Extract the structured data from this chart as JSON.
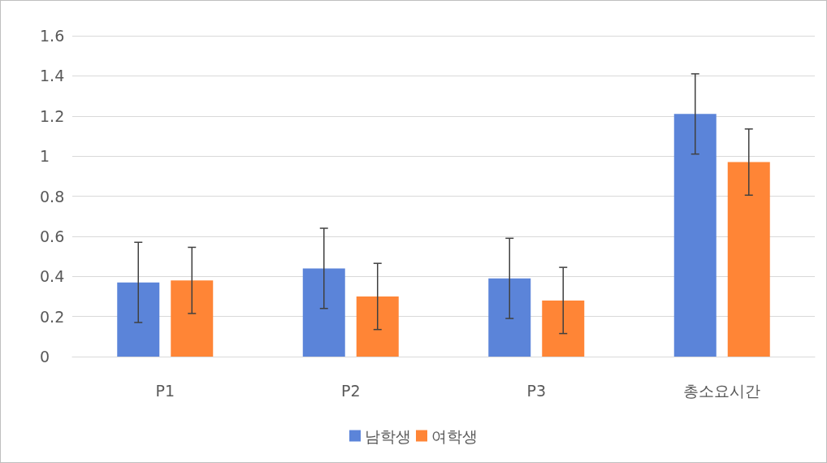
{
  "chart_data": {
    "type": "bar",
    "categories": [
      "P1",
      "P2",
      "P3",
      "총소요시간"
    ],
    "series": [
      {
        "name": "남학생",
        "color": "#5b84d9",
        "values": [
          0.37,
          0.44,
          0.39,
          1.21
        ],
        "errors": [
          0.2,
          0.2,
          0.2,
          0.2
        ]
      },
      {
        "name": "여학생",
        "color": "#ff8536",
        "values": [
          0.38,
          0.3,
          0.28,
          0.97
        ],
        "errors": [
          0.165,
          0.165,
          0.165,
          0.165
        ]
      }
    ],
    "ylim": [
      0,
      1.6
    ],
    "yticks": [
      0,
      0.2,
      0.4,
      0.6,
      0.8,
      1,
      1.2,
      1.4,
      1.6
    ],
    "grid": "y",
    "legend": "bottom"
  }
}
